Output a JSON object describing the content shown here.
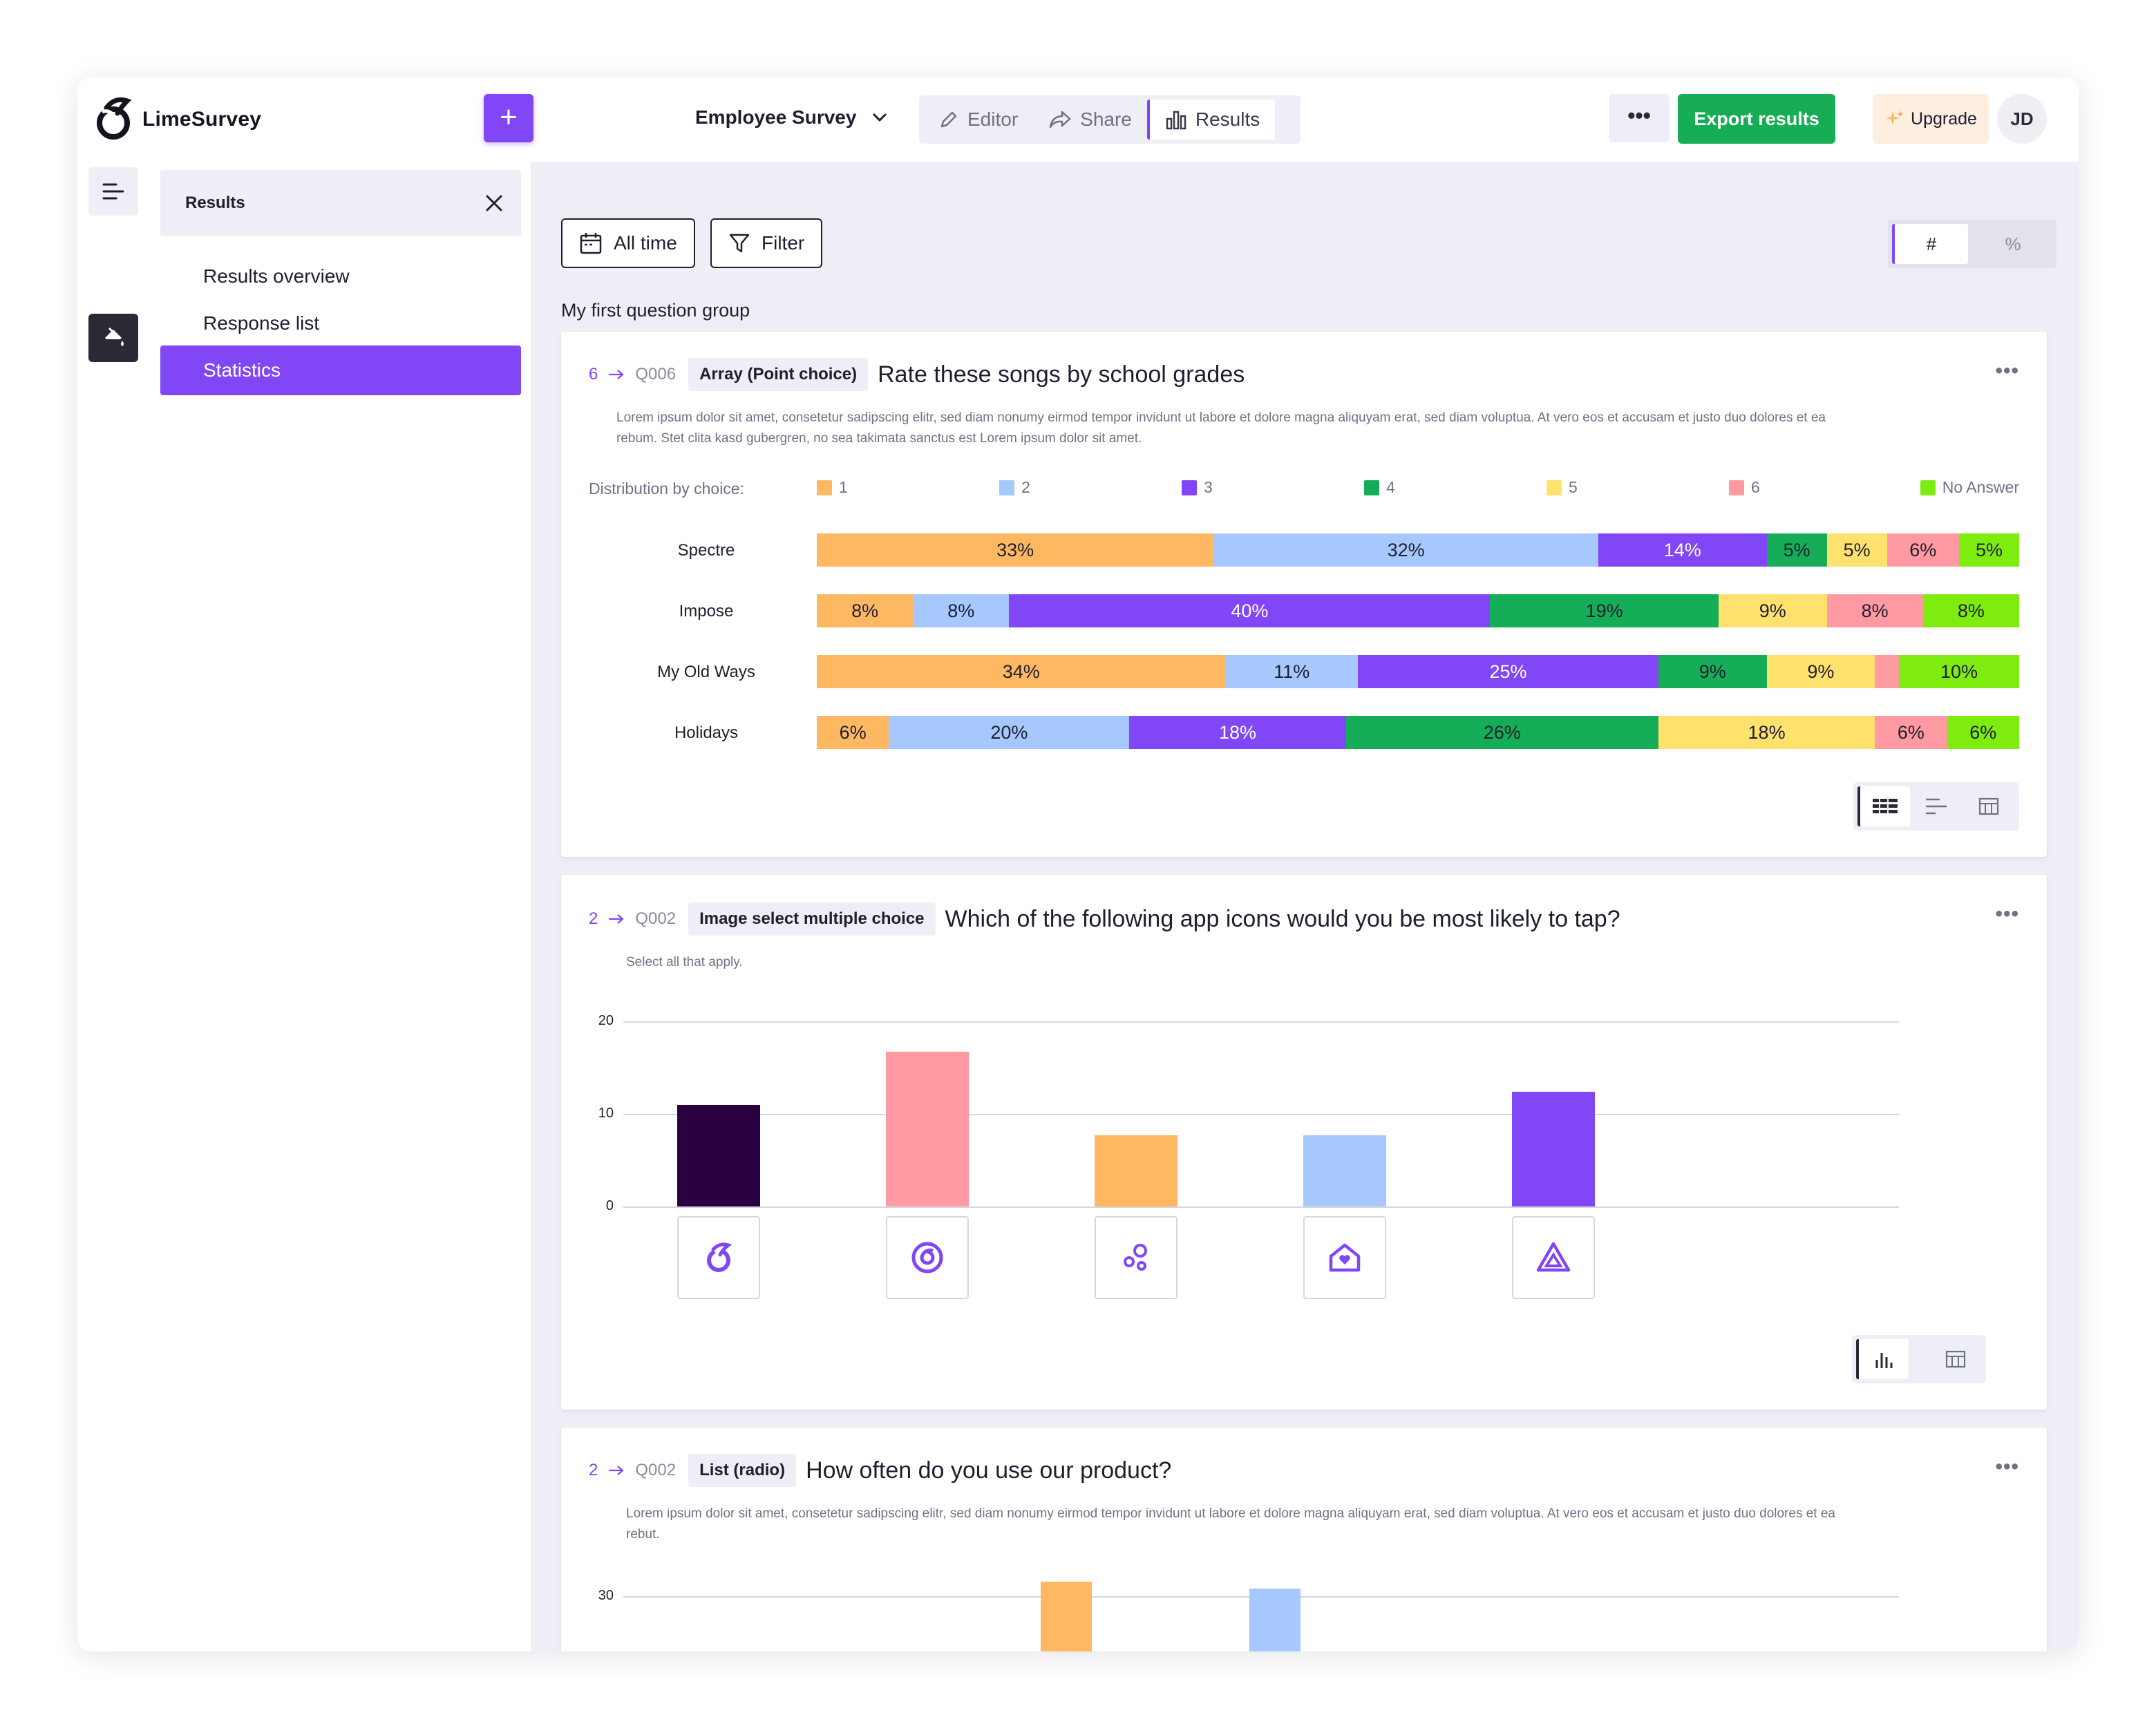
{
  "app": {
    "logo_text": "LimeSurvey"
  },
  "header": {
    "survey_title": "Employee Survey",
    "modes": [
      {
        "label": "Editor",
        "icon": "pencil-icon",
        "active": false
      },
      {
        "label": "Share",
        "icon": "share-icon",
        "active": false
      },
      {
        "label": "Results",
        "icon": "bar-chart-icon",
        "active": true
      }
    ],
    "more_label": "•••",
    "export_label": "Export results",
    "upgrade_label": "Upgrade",
    "avatar_initials": "JD",
    "colors": {
      "accent": "#8146f6",
      "export": "#17ad55"
    }
  },
  "sidebar": {
    "title": "Results",
    "items": [
      {
        "label": "Results overview",
        "active": false
      },
      {
        "label": "Response list",
        "active": false
      },
      {
        "label": "Statistics",
        "active": true
      }
    ]
  },
  "toolbar": {
    "time_label": "All time",
    "filter_label": "Filter",
    "toggle": [
      {
        "label": "#",
        "active": true
      },
      {
        "label": "%",
        "active": false
      }
    ]
  },
  "group_title": "My first question group",
  "questions": [
    {
      "number": "6",
      "code": "Q006",
      "type": "Array (Point choice)",
      "title": "Rate these songs by school grades",
      "description": "Lorem ipsum dolor sit amet, consetetur sadipscing elitr, sed diam nonumy eirmod tempor invidunt ut labore et dolore magna aliquyam erat, sed diam voluptua. At vero eos et accusam et justo duo dolores et ea rebum. Stet clita kasd gubergren, no sea takimata sanctus est Lorem ipsum dolor sit amet.",
      "legend_label": "Distribution by choice:"
    },
    {
      "number": "2",
      "code": "Q002",
      "type": "Image select multiple choice",
      "title": "Which of the following app icons would you be most likely to tap?",
      "description": "Select all that apply."
    },
    {
      "number": "2",
      "code": "Q002",
      "type": "List (radio)",
      "title": "How often do you use our product?",
      "description": "Lorem ipsum dolor sit amet, consetetur sadipscing elitr, sed diam nonumy eirmod tempor invidunt ut labore et dolore magna aliquyam erat, sed diam voluptua. At vero eos et accusam et justo duo dolores et ea rebut."
    }
  ],
  "chart_data": [
    {
      "type": "bar",
      "stacked": true,
      "orientation": "horizontal",
      "categories": [
        "Spectre",
        "Impose",
        "My Old Ways",
        "Holidays"
      ],
      "series": [
        {
          "name": "1",
          "color": "#ffb862",
          "values": [
            33,
            8,
            34,
            6
          ]
        },
        {
          "name": "2",
          "color": "#a6c8ff",
          "values": [
            32,
            8,
            11,
            20
          ]
        },
        {
          "name": "3",
          "color": "#8146f6",
          "values": [
            14,
            40,
            25,
            18
          ]
        },
        {
          "name": "4",
          "color": "#15ad57",
          "values": [
            5,
            19,
            9,
            26
          ]
        },
        {
          "name": "5",
          "color": "#ffe16e",
          "values": [
            5,
            9,
            9,
            18
          ]
        },
        {
          "name": "6",
          "color": "#ff9aa2",
          "values": [
            6,
            8,
            2,
            6
          ]
        },
        {
          "name": "No Answer",
          "color": "#7eec0f",
          "values": [
            5,
            8,
            10,
            6
          ]
        }
      ],
      "labels": [
        [
          "33%",
          "32%",
          "14%",
          "5%",
          "5%",
          "6%",
          "5%"
        ],
        [
          "8%",
          "8%",
          "40%",
          "19%",
          "9%",
          "8%",
          "8%"
        ],
        [
          "34%",
          "11%",
          "25%",
          "9%",
          "9%",
          "",
          "10%"
        ],
        [
          "6%",
          "20%",
          "18%",
          "26%",
          "18%",
          "6%",
          "6%"
        ]
      ],
      "unit": "%"
    },
    {
      "type": "bar",
      "categories": [
        "icon-1",
        "icon-2",
        "icon-3",
        "icon-4",
        "icon-5"
      ],
      "values": [
        11,
        16.7,
        7.7,
        7.7,
        12.4
      ],
      "colors": [
        "#2a0041",
        "#ff9aa2",
        "#ffb862",
        "#a6c8ff",
        "#8146f6"
      ],
      "icons": [
        "limesurvey-icon",
        "swirl-icon",
        "bubbles-icon",
        "house-heart-icon",
        "triangle-icon"
      ],
      "yticks": [
        "0",
        "10",
        "20"
      ],
      "ylim": [
        0,
        20
      ],
      "grid": true
    },
    {
      "type": "bar",
      "yticks": [
        "30"
      ],
      "colors": [
        "#ffb862",
        "#a6c8ff"
      ],
      "values": [
        31.5,
        30.8
      ],
      "ylim": [
        0,
        30
      ],
      "note": "partially visible"
    }
  ]
}
